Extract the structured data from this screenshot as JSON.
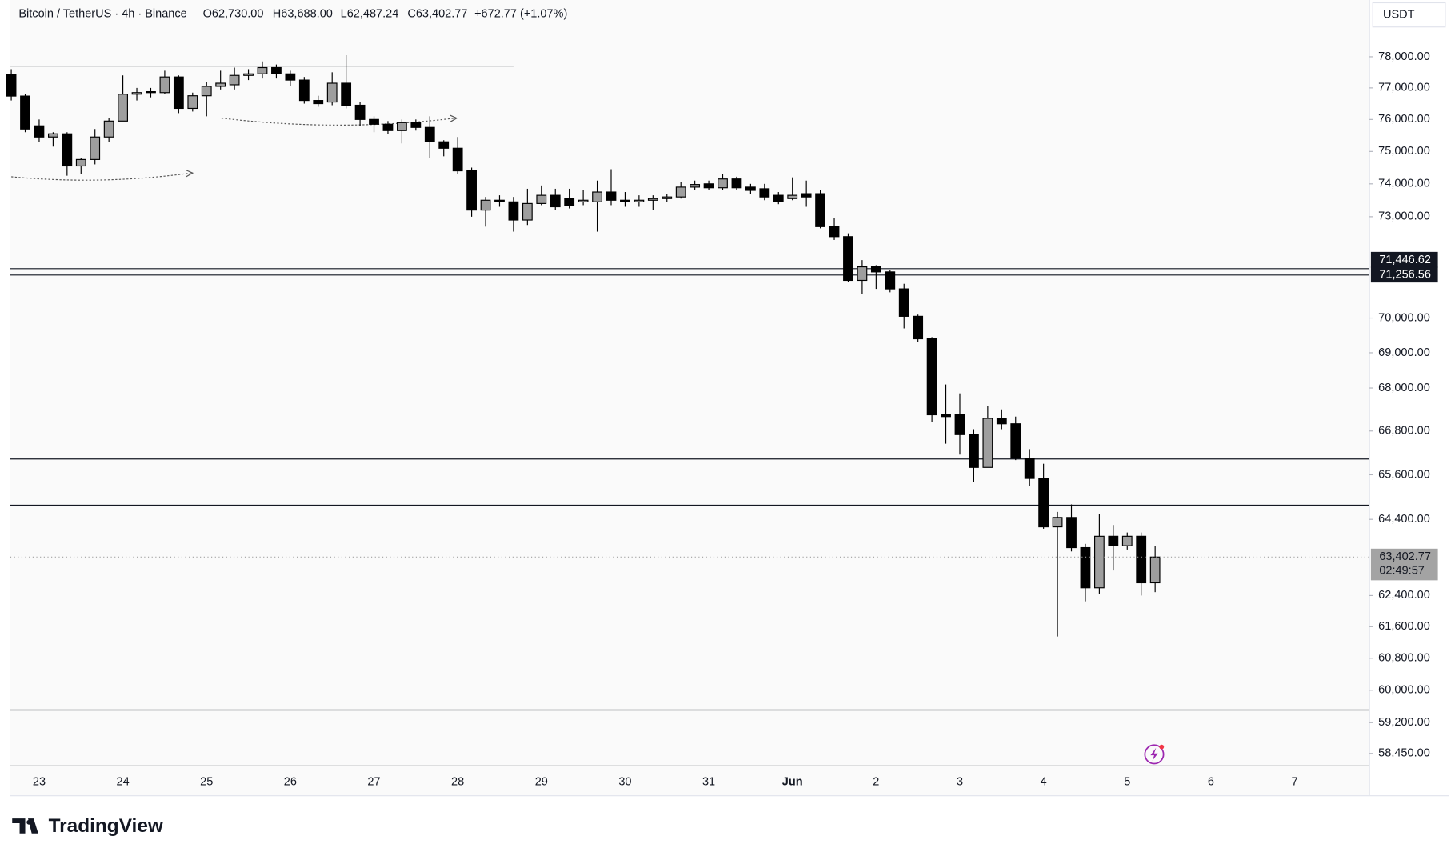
{
  "chart_data": {
    "type": "candlestick",
    "header": [
      "Bitcoin / TetherUS · 4h · Binance",
      "O62,730.00",
      "H63,688.00",
      "L62,487.24",
      "C63,402.77",
      "+672.77 (+1.07%)"
    ],
    "currency": "USDT",
    "logo": "TradingView",
    "log_scale": true,
    "up_color": "#9e9e9e",
    "down_color": "#000000",
    "categories": [
      null,
      null,
      "23",
      null,
      null,
      null,
      null,
      null,
      "24",
      null,
      null,
      null,
      null,
      null,
      "25",
      null,
      null,
      null,
      null,
      null,
      "26",
      null,
      null,
      null,
      null,
      null,
      "27",
      null,
      null,
      null,
      null,
      null,
      "28",
      null,
      null,
      null,
      null,
      null,
      "29",
      null,
      null,
      null,
      null,
      null,
      "30",
      null,
      null,
      null,
      null,
      null,
      "31",
      null,
      null,
      null,
      null,
      null,
      "Jun",
      null,
      null,
      null,
      null,
      null,
      "2",
      null,
      null,
      null,
      null,
      null,
      "3",
      null,
      null,
      null,
      null,
      null,
      "4",
      null,
      null,
      null,
      null,
      null,
      "5",
      null,
      null,
      null,
      null,
      null,
      "6",
      null,
      null,
      null,
      null,
      null,
      "7"
    ],
    "open": [
      77430,
      76740,
      75800,
      75450,
      75550,
      74550,
      74750,
      75450,
      75950,
      76800,
      76850,
      76850,
      77350,
      76350,
      76750,
      77050,
      77100,
      77400,
      77450,
      77650,
      77450,
      77250,
      76600,
      76550,
      77150,
      76450,
      76000,
      75850,
      75650,
      75900,
      75750,
      75300,
      75100,
      74400,
      73200,
      73500,
      73450,
      72900,
      73400,
      73650,
      73550,
      73450,
      73450,
      73750,
      73500,
      73450,
      73500,
      73550,
      73600,
      73900,
      74000,
      73880,
      74150,
      73900,
      73850,
      73650,
      73550,
      73700,
      73700,
      72700,
      72400,
      71100,
      71500,
      71350,
      70850,
      70050,
      69400,
      67250,
      67250,
      66700,
      65800,
      67150,
      67000,
      66050,
      65500,
      64200,
      64450,
      63650,
      62600,
      63950,
      63700,
      63950,
      62730,
      null,
      null,
      null,
      null,
      null,
      null,
      null,
      null,
      null,
      null
    ],
    "high": [
      77600,
      76800,
      76000,
      75600,
      75600,
      74800,
      75700,
      76050,
      77400,
      77000,
      77000,
      77550,
      77400,
      76850,
      77200,
      77550,
      77650,
      77600,
      77850,
      77750,
      77550,
      77350,
      76750,
      77500,
      78050,
      76550,
      76100,
      75950,
      76000,
      76000,
      76100,
      75350,
      75450,
      74500,
      73600,
      73650,
      73600,
      73850,
      73950,
      73850,
      73850,
      73800,
      74100,
      74450,
      73750,
      73650,
      73650,
      73700,
      74050,
      74100,
      74100,
      74300,
      74220,
      74000,
      74000,
      73750,
      74200,
      74100,
      73800,
      72950,
      72500,
      71700,
      71550,
      71400,
      71000,
      70100,
      69450,
      68100,
      67850,
      66850,
      67500,
      67400,
      67200,
      66300,
      65900,
      64600,
      64800,
      63750,
      64550,
      64250,
      64050,
      64050,
      63688,
      null,
      null,
      null,
      null,
      null,
      null,
      null,
      null,
      null,
      null
    ],
    "low": [
      76600,
      75600,
      75300,
      75150,
      74250,
      74300,
      74600,
      75300,
      75950,
      76600,
      76700,
      76800,
      76200,
      76250,
      76100,
      76950,
      76950,
      77250,
      77300,
      77300,
      77050,
      76500,
      76400,
      76450,
      76350,
      75800,
      75600,
      75550,
      75250,
      75650,
      74800,
      74850,
      74300,
      73000,
      72700,
      73300,
      72550,
      72750,
      73350,
      73200,
      73250,
      73350,
      72550,
      73350,
      73300,
      73300,
      73200,
      73450,
      73550,
      73800,
      73800,
      73800,
      73800,
      73680,
      73500,
      73380,
      73500,
      73300,
      72650,
      72300,
      71050,
      70700,
      70850,
      70750,
      69700,
      69300,
      67050,
      66450,
      66150,
      65400,
      65800,
      66850,
      66000,
      65300,
      64150,
      61350,
      63550,
      62250,
      62450,
      63050,
      63600,
      62400,
      62487.24,
      null,
      null,
      null,
      null,
      null,
      null,
      null,
      null,
      null,
      null
    ],
    "close": [
      76740,
      75700,
      75450,
      75550,
      74550,
      74750,
      75450,
      75950,
      76800,
      76850,
      76880,
      77350,
      76350,
      76750,
      77050,
      77150,
      77400,
      77450,
      77650,
      77450,
      77250,
      76600,
      76500,
      77150,
      76450,
      76000,
      75850,
      75650,
      75900,
      75750,
      75300,
      75100,
      74400,
      73200,
      73500,
      73450,
      72900,
      73400,
      73650,
      73300,
      73350,
      73500,
      73750,
      73500,
      73450,
      73500,
      73550,
      73600,
      73900,
      73980,
      73880,
      74150,
      73880,
      73800,
      73600,
      73450,
      73650,
      73600,
      72700,
      72400,
      71100,
      71500,
      71350,
      70850,
      70050,
      69400,
      67250,
      67200,
      66700,
      65800,
      67150,
      67000,
      66050,
      65500,
      64200,
      64450,
      63650,
      62600,
      63950,
      63700,
      63950,
      62730,
      63402.77,
      null,
      null,
      null,
      null,
      null,
      null,
      null,
      null,
      null,
      null
    ],
    "ylim": [
      58158,
      79855
    ],
    "yticks": [
      {
        "value": 78000,
        "label": "78,000.00"
      },
      {
        "value": 77000,
        "label": "77,000.00"
      },
      {
        "value": 76000,
        "label": "76,000.00"
      },
      {
        "value": 75000,
        "label": "75,000.00"
      },
      {
        "value": 74000,
        "label": "74,000.00"
      },
      {
        "value": 73000,
        "label": "73,000.00"
      },
      {
        "value": 70000,
        "label": "70,000.00"
      },
      {
        "value": 69000,
        "label": "69,000.00"
      },
      {
        "value": 68000,
        "label": "68,000.00"
      },
      {
        "value": 66800,
        "label": "66,800.00"
      },
      {
        "value": 65600,
        "label": "65,600.00"
      },
      {
        "value": 64400,
        "label": "64,400.00"
      },
      {
        "value": 62400,
        "label": "62,400.00"
      },
      {
        "value": 61600,
        "label": "61,600.00"
      },
      {
        "value": 60800,
        "label": "60,800.00"
      },
      {
        "value": 60000,
        "label": "60,000.00"
      },
      {
        "value": 59200,
        "label": "59,200.00"
      },
      {
        "value": 58450,
        "label": "58,450.00"
      }
    ],
    "levels": [
      71446.62,
      71256.56,
      66030,
      64780,
      59510
    ],
    "short_levels": [
      77700
    ],
    "price_tags": [
      {
        "value": 71446.62,
        "label": "71,446.62"
      },
      {
        "value": 71256.56,
        "label": "71,256.56"
      }
    ],
    "last_price_label": "63,402.77",
    "countdown": "02:49:57"
  }
}
